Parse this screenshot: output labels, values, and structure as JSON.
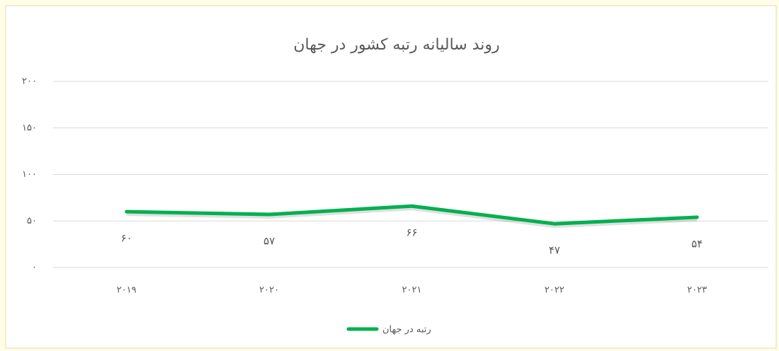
{
  "chart_data": {
    "type": "line",
    "title": "روند سالیانه رتبه کشور در جهان",
    "categories": [
      "۲۰۱۹",
      "۲۰۲۰",
      "۲۰۲۱",
      "۲۰۲۲",
      "۲۰۲۳"
    ],
    "series": [
      {
        "name": "رتبه در جهان",
        "color": "#00b050",
        "values": [
          60,
          57,
          66,
          47,
          54
        ],
        "value_labels": [
          "۶۰",
          "۵۷",
          "۶۶",
          "۴۷",
          "۵۴"
        ]
      }
    ],
    "ylim": [
      0,
      200
    ],
    "yticks": [
      {
        "value": 0,
        "label": "۰"
      },
      {
        "value": 50,
        "label": "۵۰"
      },
      {
        "value": 100,
        "label": "۱۰۰"
      },
      {
        "value": 150,
        "label": "۱۵۰"
      },
      {
        "value": 200,
        "label": "۲۰۰"
      }
    ],
    "grid": true,
    "legend": "bottom"
  }
}
